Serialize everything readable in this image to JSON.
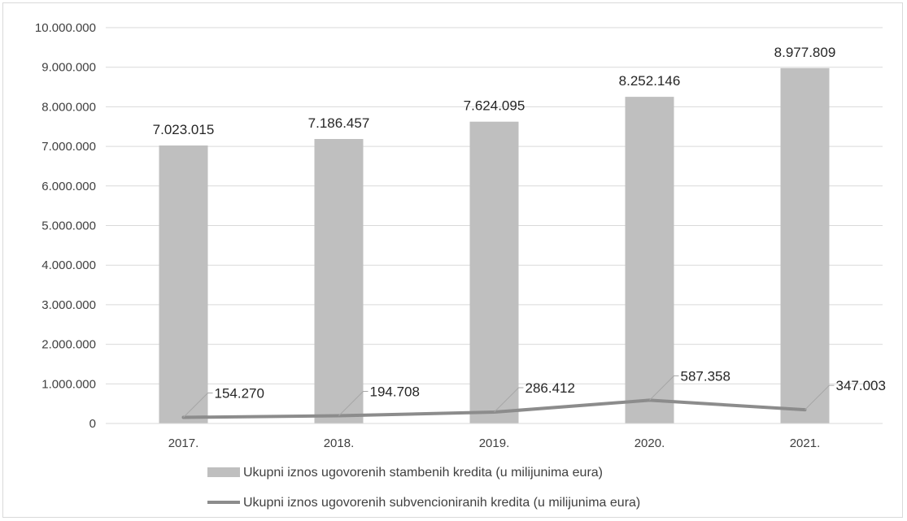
{
  "chart_data": {
    "type": "bar",
    "categories": [
      "2017.",
      "2018.",
      "2019.",
      "2020.",
      "2021."
    ],
    "series": [
      {
        "name": "Ukupni iznos ugovorenih stambenih kredita (u milijunima eura)",
        "kind": "bar",
        "color": "#bfbfbf",
        "values": [
          7023015,
          7186457,
          7624095,
          8252146,
          8977809
        ],
        "labels": [
          "7.023.015",
          "7.186.457",
          "7.624.095",
          "8.252.146",
          "8.977.809"
        ]
      },
      {
        "name": "Ukupni iznos ugovorenih subvencioniranih kredita (u milijunima eura)",
        "kind": "line",
        "color": "#8c8c8c",
        "values": [
          154270,
          194708,
          286412,
          587358,
          347003
        ],
        "labels": [
          "154.270",
          "194.708",
          "286.412",
          "587.358",
          "347.003"
        ]
      }
    ],
    "ylim": [
      0,
      10000000
    ],
    "yticks": [
      {
        "value": 0,
        "label": "0"
      },
      {
        "value": 1000000,
        "label": "1.000.000"
      },
      {
        "value": 2000000,
        "label": "2.000.000"
      },
      {
        "value": 3000000,
        "label": "3.000.000"
      },
      {
        "value": 4000000,
        "label": "4.000.000"
      },
      {
        "value": 5000000,
        "label": "5.000.000"
      },
      {
        "value": 6000000,
        "label": "6.000.000"
      },
      {
        "value": 7000000,
        "label": "7.000.000"
      },
      {
        "value": 8000000,
        "label": "8.000.000"
      },
      {
        "value": 9000000,
        "label": "9.000.000"
      },
      {
        "value": 10000000,
        "label": "10.000.000"
      }
    ],
    "grid": true,
    "legend_position": "bottom",
    "gridline_color": "#d9d9d9"
  }
}
